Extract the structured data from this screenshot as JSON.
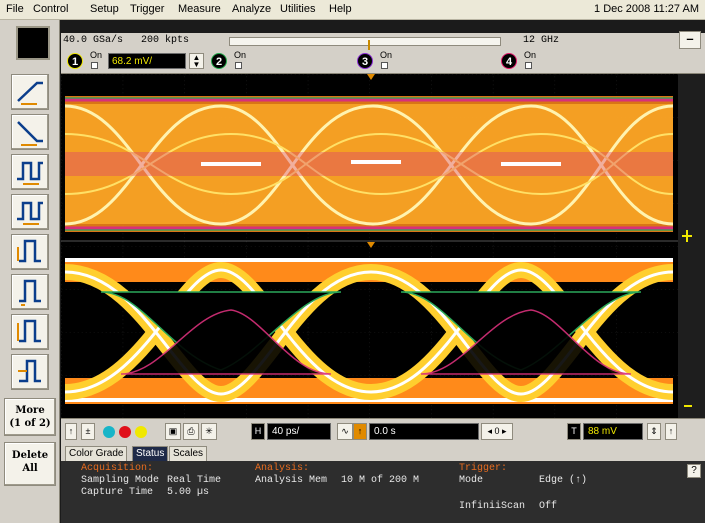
{
  "menu": {
    "items": [
      "File",
      "Control",
      "Setup",
      "Trigger",
      "Measure",
      "Analyze",
      "Utilities",
      "Help"
    ],
    "datetime": "1 Dec 2008 11:27 AM"
  },
  "acquisition_bar": {
    "sample_rate": "40.0 GSa/s",
    "points": "200 kpts",
    "bandwidth": "12 GHz",
    "minimize_label": "–"
  },
  "channels": {
    "ch1": {
      "number": "1",
      "on_label": "On",
      "scale": "68.2 mV/",
      "color": "#f0e800"
    },
    "ch2": {
      "number": "2",
      "on_label": "On",
      "color": "#22a84a"
    },
    "ch3": {
      "number": "3",
      "on_label": "On",
      "color": "#8a2bd6"
    },
    "ch4": {
      "number": "4",
      "on_label": "On",
      "color": "#e0186b"
    }
  },
  "sidebar": {
    "more_label": "More",
    "more_page": "(1 of 2)",
    "delete_label": "Delete",
    "delete_sub": "All"
  },
  "controls": {
    "timebase": "40 ps/",
    "delay": "0.0 s",
    "trigger_level": "88 mV",
    "nav": "0"
  },
  "tabs": [
    "Color Grade",
    "Status",
    "Scales"
  ],
  "active_tab": "Status",
  "status": {
    "acquisition_header": "Acquisition:",
    "sampling_mode_label": "Sampling Mode",
    "sampling_mode_value": "Real Time",
    "capture_time_label": "Capture Time",
    "capture_time_value": "5.00 µs",
    "analysis_header": "Analysis:",
    "analysis_mem_label": "Analysis Mem",
    "analysis_mem_value": "10 M of 200 M",
    "trigger_header": "Trigger:",
    "mode_label": "Mode",
    "mode_value": "Edge (↑)",
    "infiniiscan_label": "InfiniiScan",
    "infiniiscan_value": "Off",
    "help_label": "?"
  },
  "colors": {
    "trace_hot": "#ffffff",
    "trace_warm": "#ffcf2e",
    "trace_mid": "#ff8a1a",
    "trace_edge": "#d8307a",
    "trace_outer": "#2aa85a"
  }
}
